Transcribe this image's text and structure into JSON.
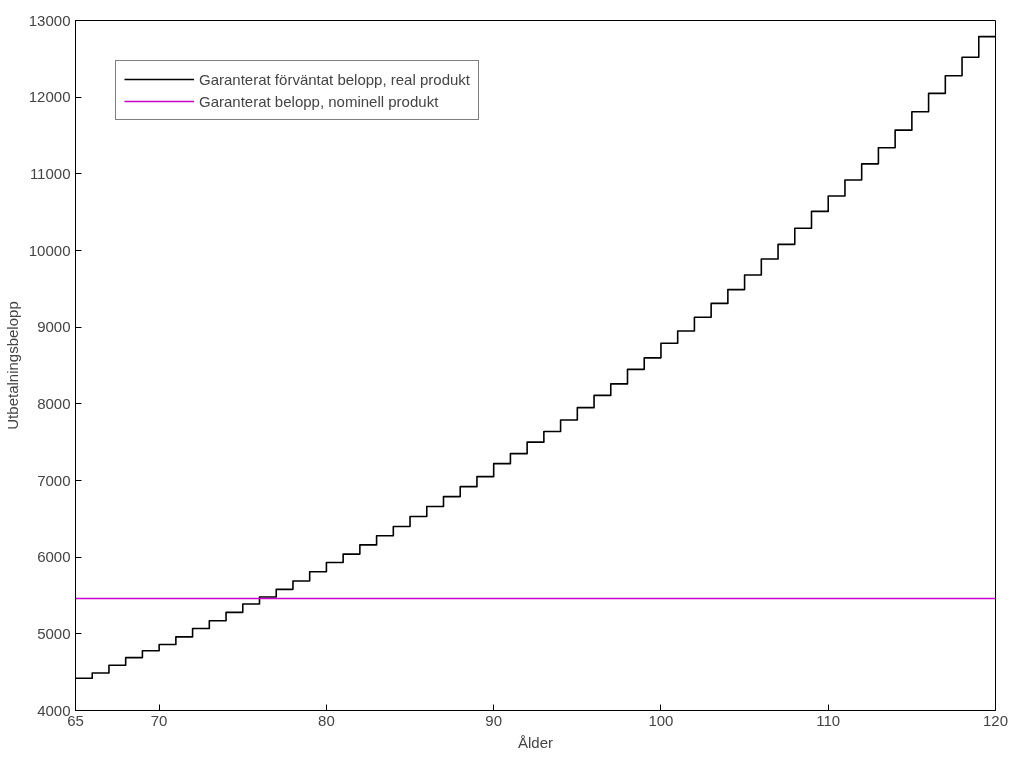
{
  "chart_data": {
    "type": "step",
    "xlabel": "Ålder",
    "ylabel": "Utbetalningsbelopp",
    "xlim": [
      65,
      120
    ],
    "ylim": [
      4000,
      13000
    ],
    "xticks": [
      65,
      70,
      80,
      90,
      100,
      110,
      120
    ],
    "yticks": [
      4000,
      5000,
      6000,
      7000,
      8000,
      9000,
      10000,
      11000,
      12000,
      13000
    ],
    "grid": false,
    "legend": "top left",
    "series": [
      {
        "name": "Garanterat förväntat belopp, real produkt",
        "color": "#000000",
        "x": [
          65,
          66,
          67,
          68,
          69,
          70,
          71,
          72,
          73,
          74,
          75,
          76,
          77,
          78,
          79,
          80,
          81,
          82,
          83,
          84,
          85,
          86,
          87,
          88,
          89,
          90,
          91,
          92,
          93,
          94,
          95,
          96,
          97,
          98,
          99,
          100,
          101,
          102,
          103,
          104,
          105,
          106,
          107,
          108,
          109,
          110,
          111,
          112,
          113,
          114,
          115,
          116,
          117,
          118,
          119,
          120
        ],
        "values": [
          4420,
          4490,
          4590,
          4690,
          4780,
          4860,
          4960,
          5070,
          5170,
          5280,
          5390,
          5480,
          5580,
          5690,
          5810,
          5930,
          6040,
          6160,
          6280,
          6400,
          6530,
          6660,
          6790,
          6920,
          7050,
          7220,
          7350,
          7500,
          7640,
          7790,
          7950,
          8110,
          8260,
          8450,
          8600,
          8790,
          8950,
          9130,
          9310,
          9490,
          9680,
          9890,
          10080,
          10290,
          10510,
          10710,
          10920,
          11130,
          11340,
          11570,
          11810,
          12050,
          12280,
          12520,
          12790,
          12790
        ]
      },
      {
        "name": "Garanterat belopp, nominell produkt",
        "color": "#cc00cc",
        "type": "line",
        "x": [
          65,
          120
        ],
        "values": [
          5460,
          5460
        ]
      }
    ]
  }
}
